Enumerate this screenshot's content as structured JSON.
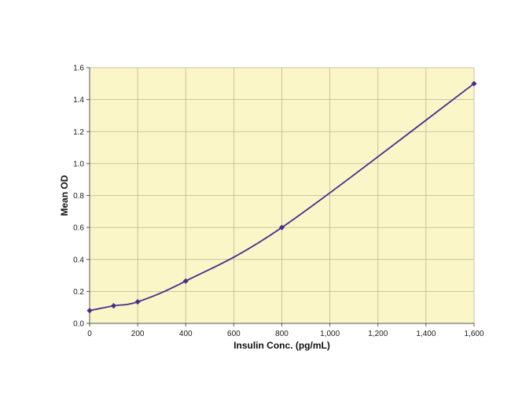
{
  "chart_data": {
    "type": "line",
    "title": "",
    "xlabel": "Insulin Conc. (pg/mL)",
    "ylabel": "Mean OD",
    "xlim": [
      0,
      1600
    ],
    "ylim": [
      0,
      1.6
    ],
    "x_ticks": [
      0,
      200,
      400,
      600,
      800,
      1000,
      1200,
      1400,
      1600
    ],
    "x_tick_labels": [
      "0",
      "200",
      "400",
      "600",
      "800",
      "1,000",
      "1,200",
      "1,400",
      "1,600"
    ],
    "y_ticks": [
      0,
      0.2,
      0.4,
      0.6,
      0.8,
      1.0,
      1.2,
      1.4,
      1.6
    ],
    "y_tick_labels": [
      "0.0",
      "0.2",
      "0.4",
      "0.6",
      "0.8",
      "1.0",
      "1.2",
      "1.4",
      "1.6"
    ],
    "grid": true,
    "legend": "none",
    "series": [
      {
        "x": [
          0,
          100,
          200,
          400,
          800,
          1600
        ],
        "y": [
          0.08,
          0.11,
          0.135,
          0.265,
          0.6,
          1.5
        ]
      }
    ],
    "colors": {
      "plot_background": "#fbf6c8",
      "grid": "#b8b596",
      "axis": "#555555",
      "line": "#4b2c8c",
      "marker": "#4b2c8c"
    }
  }
}
